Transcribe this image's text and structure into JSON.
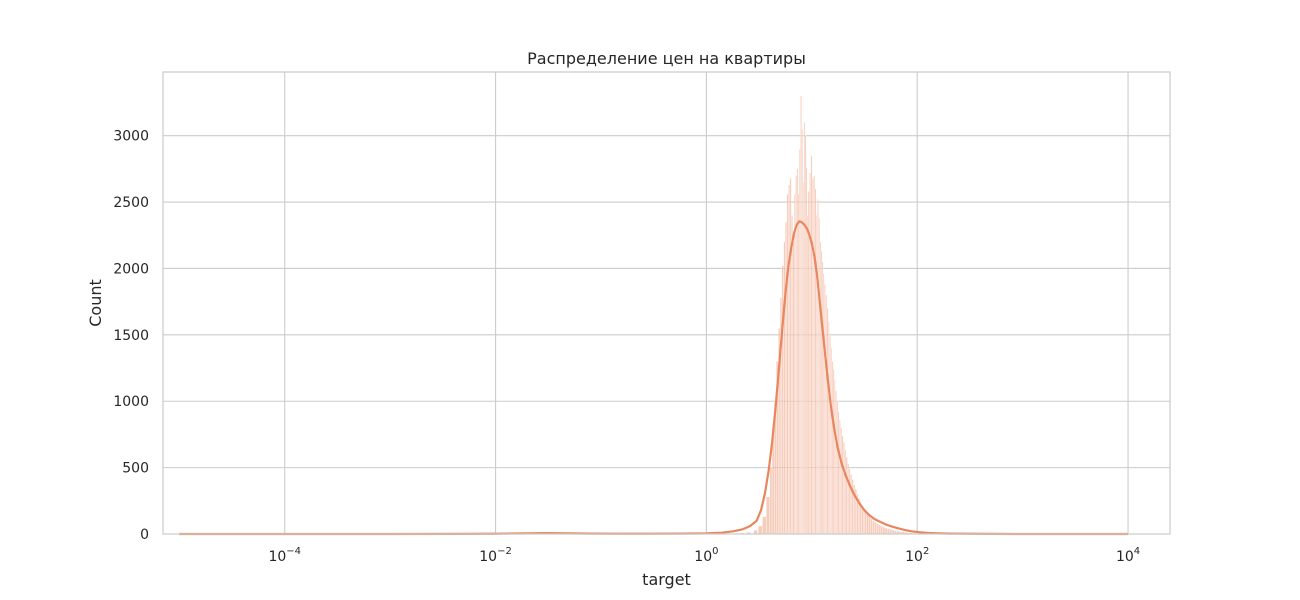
{
  "chart_data": {
    "type": "bar",
    "title": "Распределение цен на квартиры",
    "xlabel": "target",
    "ylabel": "Count",
    "x_scale": "log",
    "xlim": [
      7e-06,
      25000
    ],
    "ylim": [
      0,
      3480
    ],
    "grid": true,
    "x_ticks": [
      {
        "base": "10",
        "exp": "−4",
        "value": 0.0001
      },
      {
        "base": "10",
        "exp": "−2",
        "value": 0.01
      },
      {
        "base": "10",
        "exp": "0",
        "value": 1
      },
      {
        "base": "10",
        "exp": "2",
        "value": 100
      },
      {
        "base": "10",
        "exp": "4",
        "value": 10000
      }
    ],
    "y_ticks": [
      0,
      500,
      1000,
      1500,
      2000,
      2500,
      3000
    ],
    "histogram": {
      "color": "#ED9A78",
      "bins": [
        [
          1.5,
          2
        ],
        [
          1.8,
          4
        ],
        [
          2.1,
          8
        ],
        [
          2.4,
          14
        ],
        [
          2.8,
          28
        ],
        [
          3.1,
          60
        ],
        [
          3.4,
          130
        ],
        [
          3.7,
          280
        ],
        [
          4.0,
          500
        ],
        [
          4.2,
          790
        ],
        [
          4.4,
          1000
        ],
        [
          4.6,
          1300
        ],
        [
          4.8,
          1550
        ],
        [
          5.0,
          1780
        ],
        [
          5.2,
          2020
        ],
        [
          5.4,
          2200
        ],
        [
          5.6,
          2350
        ],
        [
          5.8,
          2560
        ],
        [
          6.0,
          2630
        ],
        [
          6.2,
          2680
        ],
        [
          6.4,
          2400
        ],
        [
          6.6,
          2200
        ],
        [
          6.8,
          2560
        ],
        [
          7.0,
          2700
        ],
        [
          7.2,
          2750
        ],
        [
          7.4,
          2560
        ],
        [
          7.6,
          2900
        ],
        [
          7.8,
          3300
        ],
        [
          8.0,
          3050
        ],
        [
          8.2,
          2650
        ],
        [
          8.4,
          3100
        ],
        [
          8.6,
          3000
        ],
        [
          8.8,
          2760
        ],
        [
          9.0,
          2400
        ],
        [
          9.2,
          2580
        ],
        [
          9.5,
          2720
        ],
        [
          9.8,
          2850
        ],
        [
          10.1,
          2680
        ],
        [
          10.4,
          2700
        ],
        [
          10.7,
          2600
        ],
        [
          11.0,
          2400
        ],
        [
          11.3,
          2520
        ],
        [
          11.6,
          2380
        ],
        [
          11.9,
          2200
        ],
        [
          12.2,
          2130
        ],
        [
          12.5,
          2050
        ],
        [
          12.8,
          1960
        ],
        [
          13.1,
          1880
        ],
        [
          13.5,
          1800
        ],
        [
          13.9,
          1700
        ],
        [
          14.3,
          1600
        ],
        [
          14.7,
          1490
        ],
        [
          15.1,
          1400
        ],
        [
          15.5,
          1300
        ],
        [
          15.9,
          1240
        ],
        [
          16.3,
          1160
        ],
        [
          16.7,
          1080
        ],
        [
          17.2,
          1000
        ],
        [
          17.7,
          920
        ],
        [
          18.2,
          860
        ],
        [
          18.7,
          800
        ],
        [
          19.3,
          740
        ],
        [
          19.9,
          690
        ],
        [
          20.5,
          630
        ],
        [
          21.1,
          580
        ],
        [
          21.8,
          530
        ],
        [
          22.5,
          490
        ],
        [
          23.2,
          450
        ],
        [
          24.0,
          410
        ],
        [
          24.8,
          370
        ],
        [
          25.7,
          340
        ],
        [
          26.6,
          300
        ],
        [
          27.5,
          270
        ],
        [
          28.5,
          240
        ],
        [
          29.6,
          215
        ],
        [
          30.7,
          190
        ],
        [
          31.9,
          170
        ],
        [
          33.2,
          150
        ],
        [
          34.6,
          130
        ],
        [
          36.0,
          115
        ],
        [
          37.6,
          100
        ],
        [
          39.3,
          88
        ],
        [
          41.1,
          78
        ],
        [
          43.0,
          68
        ],
        [
          45.0,
          60
        ],
        [
          47.2,
          52
        ],
        [
          49.5,
          45
        ],
        [
          52.0,
          40
        ],
        [
          54.7,
          35
        ],
        [
          57.6,
          30
        ],
        [
          60.7,
          26
        ],
        [
          64.0,
          22
        ],
        [
          67.6,
          19
        ],
        [
          71.5,
          16
        ],
        [
          75.7,
          13
        ],
        [
          80.2,
          11
        ],
        [
          85.1,
          9
        ],
        [
          90.4,
          7
        ],
        [
          96.2,
          6
        ],
        [
          102.4,
          5
        ],
        [
          109.1,
          4
        ],
        [
          116.4,
          3
        ],
        [
          124.3,
          3
        ],
        [
          132.9,
          2
        ],
        [
          150,
          2
        ],
        [
          180,
          1
        ],
        [
          220,
          1
        ]
      ]
    },
    "kde": {
      "color": "#E8865F",
      "points": [
        [
          1e-05,
          0
        ],
        [
          0.0001,
          0
        ],
        [
          0.001,
          0
        ],
        [
          0.005,
          1
        ],
        [
          0.01,
          2
        ],
        [
          0.02,
          5
        ],
        [
          0.03,
          7
        ],
        [
          0.05,
          5
        ],
        [
          0.08,
          3
        ],
        [
          0.15,
          2
        ],
        [
          0.3,
          2
        ],
        [
          0.6,
          3
        ],
        [
          1.0,
          5
        ],
        [
          1.4,
          10
        ],
        [
          1.8,
          20
        ],
        [
          2.2,
          35
        ],
        [
          2.6,
          60
        ],
        [
          3.0,
          100
        ],
        [
          3.3,
          180
        ],
        [
          3.6,
          310
        ],
        [
          3.9,
          480
        ],
        [
          4.2,
          690
        ],
        [
          4.5,
          930
        ],
        [
          4.8,
          1180
        ],
        [
          5.1,
          1430
        ],
        [
          5.4,
          1660
        ],
        [
          5.7,
          1860
        ],
        [
          6.0,
          2020
        ],
        [
          6.4,
          2160
        ],
        [
          6.8,
          2270
        ],
        [
          7.2,
          2330
        ],
        [
          7.6,
          2355
        ],
        [
          8.0,
          2350
        ],
        [
          8.5,
          2330
        ],
        [
          9.0,
          2300
        ],
        [
          9.5,
          2250
        ],
        [
          10.0,
          2190
        ],
        [
          10.6,
          2090
        ],
        [
          11.2,
          1950
        ],
        [
          11.8,
          1780
        ],
        [
          12.5,
          1580
        ],
        [
          13.3,
          1370
        ],
        [
          14.2,
          1160
        ],
        [
          15.2,
          960
        ],
        [
          16.4,
          780
        ],
        [
          17.7,
          640
        ],
        [
          19.2,
          530
        ],
        [
          21.0,
          440
        ],
        [
          23.1,
          360
        ],
        [
          25.5,
          290
        ],
        [
          28.3,
          230
        ],
        [
          31.5,
          180
        ],
        [
          35.3,
          140
        ],
        [
          39.7,
          110
        ],
        [
          44.9,
          90
        ],
        [
          51.0,
          70
        ],
        [
          58.2,
          55
        ],
        [
          66.7,
          42
        ],
        [
          76.7,
          30
        ],
        [
          88.5,
          20
        ],
        [
          102,
          14
        ],
        [
          118,
          10
        ],
        [
          137,
          7
        ],
        [
          160,
          5
        ],
        [
          200,
          3
        ],
        [
          300,
          2
        ],
        [
          500,
          1
        ],
        [
          1000,
          0
        ],
        [
          10000,
          0
        ]
      ]
    }
  }
}
